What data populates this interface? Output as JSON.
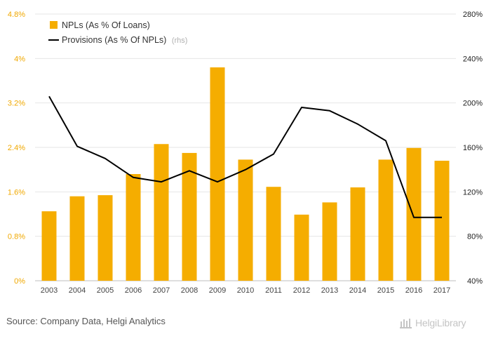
{
  "chart_data": {
    "type": "bar",
    "categories": [
      "2003",
      "2004",
      "2005",
      "2006",
      "2007",
      "2008",
      "2009",
      "2010",
      "2011",
      "2012",
      "2013",
      "2014",
      "2015",
      "2016",
      "2017"
    ],
    "series": [
      {
        "name": "NPLs (As % Of Loans)",
        "type": "bar",
        "axis": "left",
        "color": "#f5ad00",
        "values": [
          1.25,
          1.52,
          1.54,
          1.92,
          2.46,
          2.3,
          3.84,
          2.18,
          1.69,
          1.19,
          1.41,
          1.68,
          2.18,
          2.39,
          2.16
        ]
      },
      {
        "name": "Provisions (As % Of NPLs)",
        "name_suffix": "(rhs)",
        "type": "line",
        "axis": "right",
        "color": "#000000",
        "values": [
          206,
          161,
          150,
          133,
          129,
          139,
          129,
          140,
          154,
          196,
          193,
          181,
          166,
          97,
          97
        ]
      }
    ],
    "y_left": {
      "min": 0,
      "max": 4.8,
      "ticks": [
        "0%",
        "0.8%",
        "1.6%",
        "2.4%",
        "3.2%",
        "4%",
        "4.8%"
      ],
      "tick_values": [
        0,
        0.8,
        1.6,
        2.4,
        3.2,
        4.0,
        4.8
      ]
    },
    "y_right": {
      "min": 40,
      "max": 280,
      "ticks": [
        "40%",
        "80%",
        "120%",
        "160%",
        "200%",
        "240%",
        "280%"
      ],
      "tick_values": [
        40,
        80,
        120,
        160,
        200,
        240,
        280
      ]
    },
    "legend_position": "top-left",
    "grid": true
  },
  "footer": {
    "source": "Source: Company Data, Helgi Analytics",
    "brand": "HelgiLibrary"
  },
  "icons": {
    "brand_logo": "helgi-library-logo-icon"
  }
}
